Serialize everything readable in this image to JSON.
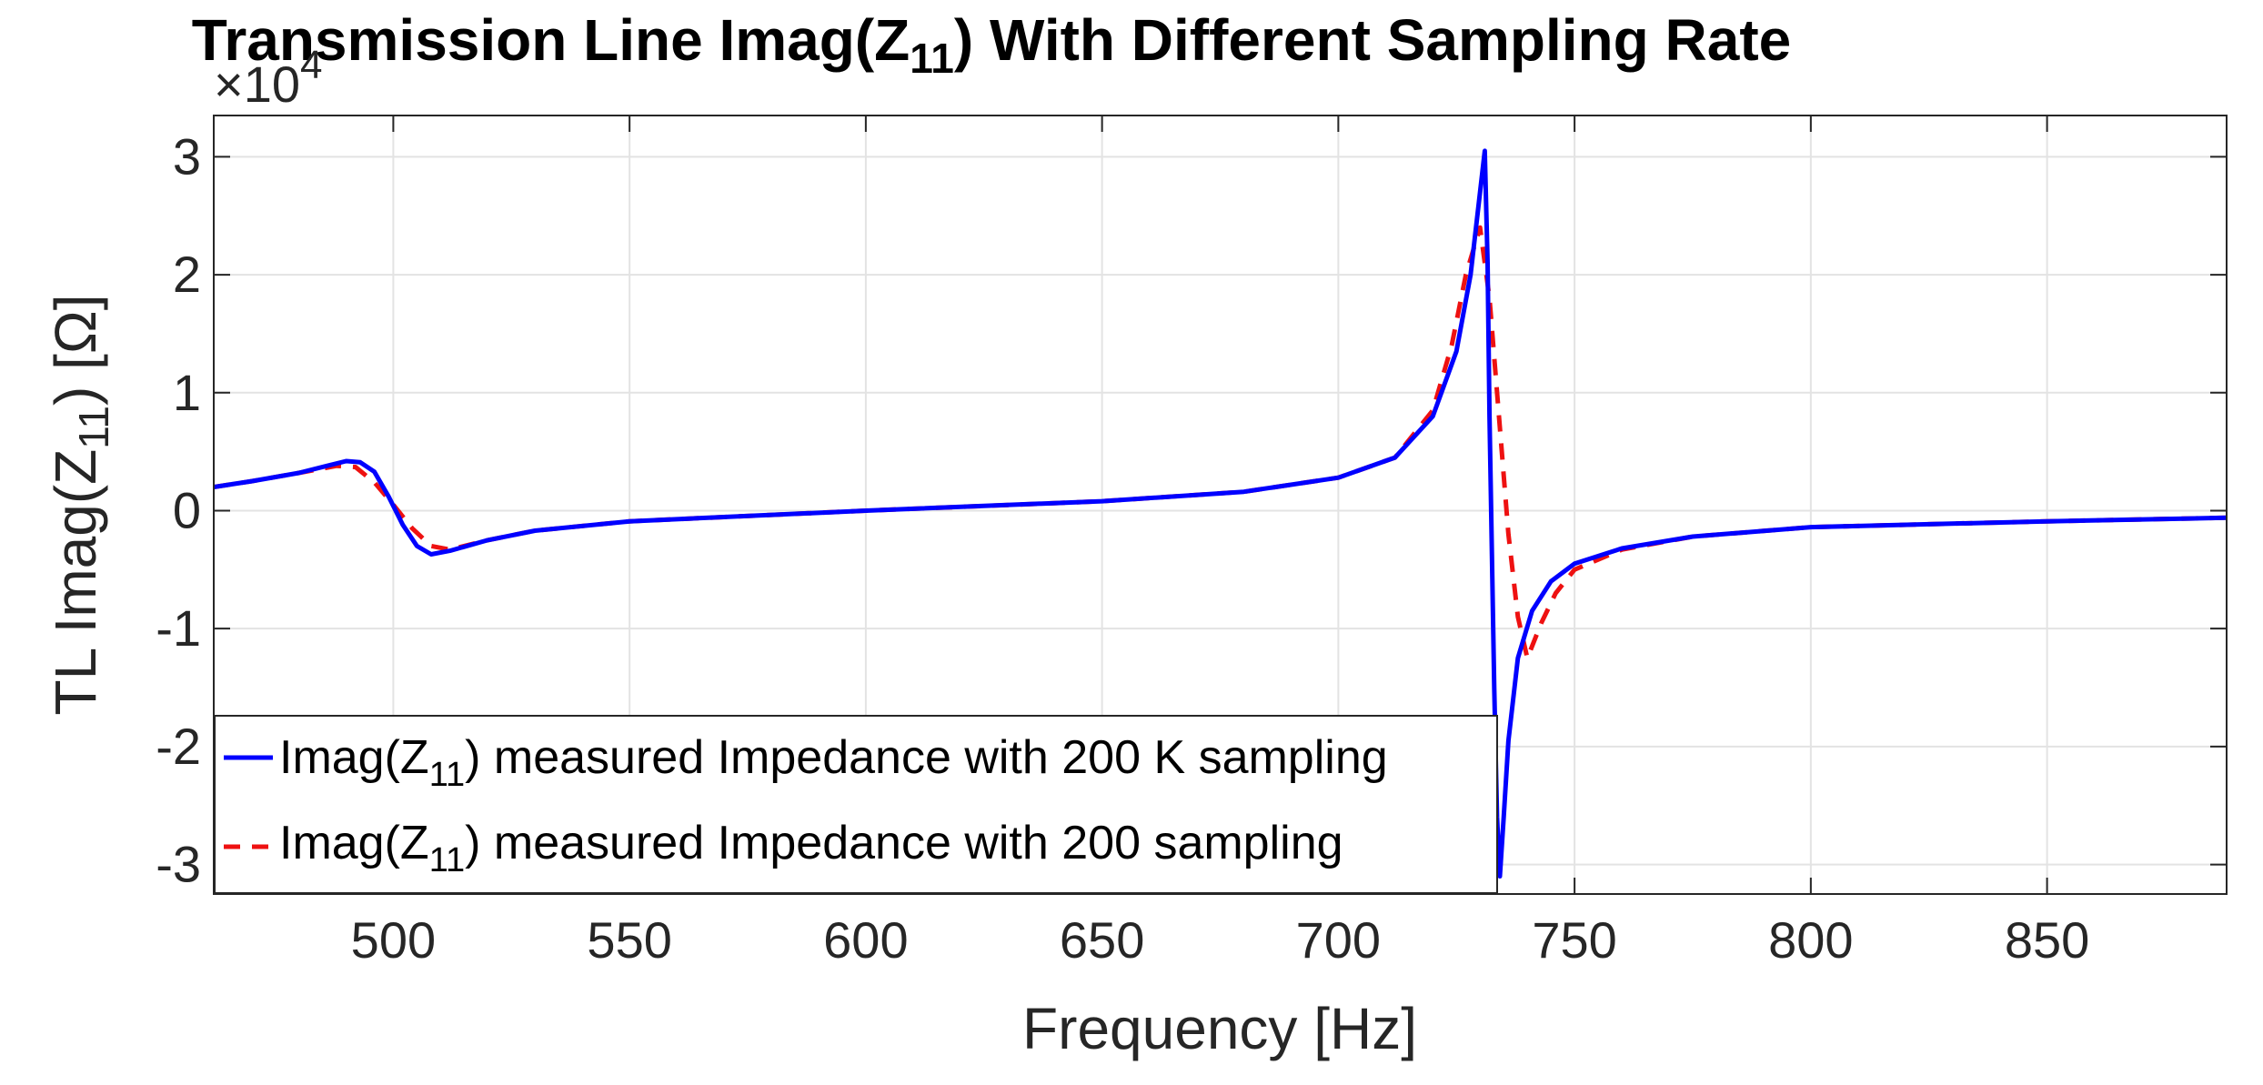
{
  "chart_data": {
    "type": "line",
    "title_main": "Transmission Line Imag(Z",
    "title_sub": "11",
    "title_tail": ") With Different Sampling Rate",
    "xlabel": "Frequency [Hz]",
    "ylabel_main": "TL Imag(Z",
    "ylabel_sub": "11",
    "ylabel_tail": ") [Ω]",
    "exponent_label": "×10",
    "exponent_power": "4",
    "xlim": [
      462,
      888
    ],
    "ylim": [
      -3.25,
      3.35
    ],
    "xticks": [
      500,
      550,
      600,
      650,
      700,
      750,
      800,
      850
    ],
    "yticks": [
      -3,
      -2,
      -1,
      0,
      1,
      2,
      3
    ],
    "xtick_labels": [
      "500",
      "550",
      "600",
      "650",
      "700",
      "750",
      "800",
      "850"
    ],
    "ytick_labels": [
      "-3",
      "-2",
      "-1",
      "0",
      "1",
      "2",
      "3"
    ],
    "grid": true,
    "legend_position": "bottom-left",
    "series": [
      {
        "name_main": "Imag(Z",
        "name_sub": "11",
        "name_tail": ") measured Impedance with 200 K sampling",
        "color": "#0000ff",
        "style": "solid",
        "x": [
          462,
          470,
          480,
          486,
          490,
          493,
          496,
          499,
          502,
          505,
          508,
          512,
          520,
          530,
          550,
          600,
          650,
          680,
          700,
          712,
          720,
          725,
          728,
          730,
          731,
          731.6,
          732,
          733,
          733.6,
          734.2,
          735,
          736,
          738,
          741,
          745,
          750,
          760,
          775,
          800,
          850,
          888
        ],
        "y": [
          0.2,
          0.25,
          0.32,
          0.38,
          0.42,
          0.41,
          0.33,
          0.12,
          -0.12,
          -0.3,
          -0.37,
          -0.34,
          -0.25,
          -0.17,
          -0.09,
          0.0,
          0.08,
          0.16,
          0.28,
          0.45,
          0.8,
          1.35,
          2.0,
          2.7,
          3.05,
          2.1,
          0.8,
          -1.5,
          -2.6,
          -3.1,
          -2.6,
          -1.95,
          -1.25,
          -0.85,
          -0.6,
          -0.45,
          -0.32,
          -0.22,
          -0.14,
          -0.09,
          -0.06
        ]
      },
      {
        "name_main": "Imag(Z",
        "name_sub": "11",
        "name_tail": ") measured Impedance with 200 sampling",
        "color": "#ee1111",
        "style": "dashed",
        "x": [
          462,
          470,
          480,
          488,
          492,
          496,
          500,
          504,
          508,
          512,
          520,
          530,
          550,
          600,
          650,
          680,
          700,
          712,
          720,
          724,
          727,
          730,
          732,
          734,
          736,
          738,
          740,
          743,
          746,
          750,
          760,
          775,
          800,
          850,
          888
        ],
        "y": [
          0.2,
          0.25,
          0.32,
          0.38,
          0.37,
          0.24,
          0.05,
          -0.15,
          -0.3,
          -0.33,
          -0.25,
          -0.17,
          -0.09,
          0.0,
          0.08,
          0.16,
          0.28,
          0.45,
          0.85,
          1.4,
          2.0,
          2.4,
          1.8,
          0.8,
          -0.2,
          -0.9,
          -1.25,
          -0.95,
          -0.7,
          -0.5,
          -0.33,
          -0.22,
          -0.14,
          -0.09,
          -0.06
        ]
      }
    ]
  }
}
